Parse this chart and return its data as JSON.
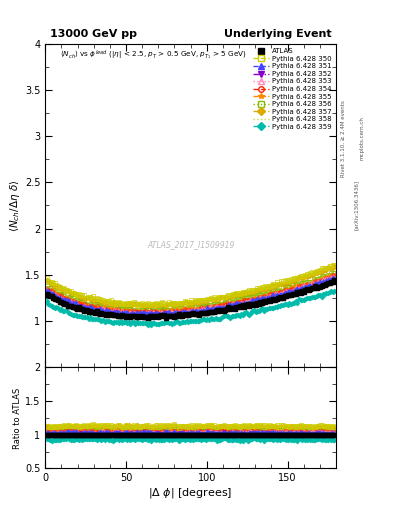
{
  "title_left": "13000 GeV pp",
  "title_right": "Underlying Event",
  "ylabel_main": "⟨N_{ch}/Δη delta⟩",
  "ylabel_ratio": "Ratio to ATLAS",
  "xlabel": "|Δ φ| [degrees]",
  "watermark": "ATLAS_2017_I1509919",
  "right_label1": "Rivet 3.1.10, ≥ 2.4M events",
  "right_label2": "[arXiv:1306.3436]",
  "right_label3": "mcplots.cern.ch",
  "ylim_main": [
    0.5,
    4.0
  ],
  "ylim_ratio": [
    0.5,
    2.0
  ],
  "xlim": [
    0,
    180
  ],
  "series": [
    {
      "label": "ATLAS",
      "color": "#000000",
      "ls": "none",
      "marker": "s",
      "mfc": "#000000",
      "mec": "#000000"
    },
    {
      "label": "Pythia 6.428 350",
      "color": "#cccc00",
      "ls": "--",
      "marker": "s",
      "mfc": "none",
      "mec": "#cccc00"
    },
    {
      "label": "Pythia 6.428 351",
      "color": "#4444ff",
      "ls": "--",
      "marker": "^",
      "mfc": "#4444ff",
      "mec": "#4444ff"
    },
    {
      "label": "Pythia 6.428 352",
      "color": "#8800cc",
      "ls": "-.",
      "marker": "v",
      "mfc": "#8800cc",
      "mec": "#8800cc"
    },
    {
      "label": "Pythia 6.428 353",
      "color": "#ff88bb",
      "ls": ":",
      "marker": "^",
      "mfc": "none",
      "mec": "#ff88bb"
    },
    {
      "label": "Pythia 6.428 354",
      "color": "#ff2200",
      "ls": "--",
      "marker": "o",
      "mfc": "none",
      "mec": "#ff2200"
    },
    {
      "label": "Pythia 6.428 355",
      "color": "#ff8800",
      "ls": "--",
      "marker": "*",
      "mfc": "#ff8800",
      "mec": "#ff8800"
    },
    {
      "label": "Pythia 6.428 356",
      "color": "#88bb00",
      "ls": ":",
      "marker": "s",
      "mfc": "none",
      "mec": "#88bb00"
    },
    {
      "label": "Pythia 6.428 357",
      "color": "#ddaa00",
      "ls": "--",
      "marker": "D",
      "mfc": "#ddaa00",
      "mec": "#ddaa00"
    },
    {
      "label": "Pythia 6.428 358",
      "color": "#bbdd44",
      "ls": ":",
      "marker": "none",
      "mfc": "none",
      "mec": "#bbdd44"
    },
    {
      "label": "Pythia 6.428 359",
      "color": "#00bbaa",
      "ls": "--",
      "marker": "D",
      "mfc": "#00bbaa",
      "mec": "#00bbaa"
    }
  ],
  "scales": [
    1.0,
    1.13,
    1.035,
    1.01,
    1.04,
    1.045,
    1.055,
    1.065,
    1.115,
    1.02,
    0.93
  ],
  "subtitle_line1": "<N_{ch}> vs φ^{lead} (|η| < 2.5, p_T > 0.5 GeV, p_{T_1} > 5 GeV)"
}
